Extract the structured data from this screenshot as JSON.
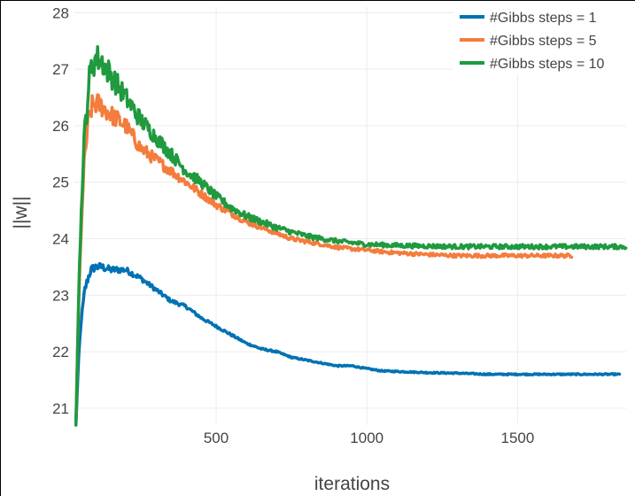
{
  "chart_data": {
    "type": "line",
    "xlabel": "iterations",
    "ylabel": "||w||",
    "xlim": [
      30,
      1860
    ],
    "ylim": [
      20.7,
      28.1
    ],
    "x_ticks": [
      500,
      1000,
      1500
    ],
    "x_tick_labels": [
      "500",
      "1000",
      "1500"
    ],
    "y_ticks": [
      21,
      22,
      23,
      24,
      25,
      26,
      27,
      28
    ],
    "y_tick_labels": [
      "21",
      "22",
      "23",
      "24",
      "25",
      "26",
      "27",
      "28"
    ],
    "grid": true,
    "legend_position": "top-right",
    "series": [
      {
        "name": "#Gibbs steps = 1",
        "color": "#0072b2",
        "x": [
          35,
          45,
          55,
          65,
          75,
          85,
          100,
          120,
          150,
          200,
          250,
          300,
          350,
          400,
          450,
          500,
          550,
          600,
          650,
          700,
          750,
          800,
          850,
          900,
          950,
          1000,
          1050,
          1100,
          1150,
          1200,
          1300,
          1400,
          1500,
          1600,
          1700,
          1800,
          1840
        ],
        "y": [
          20.7,
          22.0,
          22.7,
          23.1,
          23.3,
          23.45,
          23.5,
          23.5,
          23.45,
          23.45,
          23.3,
          23.1,
          22.9,
          22.8,
          22.6,
          22.45,
          22.3,
          22.15,
          22.05,
          22.0,
          21.9,
          21.85,
          21.8,
          21.75,
          21.75,
          21.7,
          21.66,
          21.65,
          21.64,
          21.63,
          21.62,
          21.6,
          21.6,
          21.6,
          21.6,
          21.6,
          21.6
        ],
        "noise": 0.08
      },
      {
        "name": "#Gibbs steps = 5",
        "color": "#f47c3c",
        "x": [
          35,
          45,
          55,
          65,
          75,
          85,
          100,
          120,
          150,
          200,
          250,
          300,
          350,
          400,
          450,
          500,
          550,
          600,
          650,
          700,
          750,
          800,
          850,
          900,
          950,
          1000,
          1050,
          1100,
          1200,
          1300,
          1400,
          1500,
          1600,
          1680
        ],
        "y": [
          20.7,
          23.0,
          24.5,
          25.5,
          26.0,
          26.3,
          26.4,
          26.35,
          26.2,
          26.0,
          25.6,
          25.4,
          25.2,
          25.0,
          24.8,
          24.6,
          24.45,
          24.3,
          24.2,
          24.1,
          24.0,
          23.95,
          23.9,
          23.85,
          23.82,
          23.8,
          23.77,
          23.75,
          23.72,
          23.7,
          23.7,
          23.7,
          23.7,
          23.7
        ],
        "noise": 0.22
      },
      {
        "name": "#Gibbs steps = 10",
        "color": "#1f9a3f",
        "x": [
          35,
          45,
          55,
          65,
          75,
          85,
          100,
          120,
          150,
          200,
          250,
          300,
          350,
          400,
          450,
          500,
          550,
          600,
          650,
          700,
          750,
          800,
          850,
          900,
          950,
          1000,
          1050,
          1100,
          1200,
          1300,
          1400,
          1500,
          1600,
          1700,
          1860
        ],
        "y": [
          20.7,
          23.2,
          24.8,
          25.9,
          26.6,
          27.0,
          27.2,
          27.15,
          26.9,
          26.5,
          26.1,
          25.8,
          25.5,
          25.2,
          25.0,
          24.75,
          24.55,
          24.4,
          24.3,
          24.2,
          24.12,
          24.05,
          24.0,
          23.96,
          23.93,
          23.9,
          23.89,
          23.88,
          23.87,
          23.86,
          23.86,
          23.86,
          23.86,
          23.86,
          23.86
        ],
        "noise": 0.28
      }
    ]
  }
}
